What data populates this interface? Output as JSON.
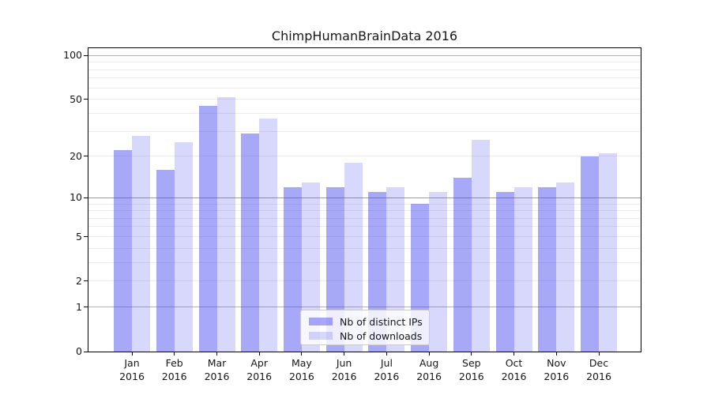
{
  "chart_data": {
    "type": "bar",
    "title": "ChimpHumanBrainData 2016",
    "xlabel": "",
    "ylabel": "",
    "scale": "log1p",
    "ylim": [
      0,
      112
    ],
    "grid": true,
    "yticks": [
      0,
      1,
      2,
      5,
      10,
      20,
      50,
      100
    ],
    "minor_gridlines": [
      2,
      3,
      4,
      5,
      6,
      7,
      8,
      9,
      20,
      30,
      40,
      50,
      60,
      70,
      80,
      90
    ],
    "major_gridlines": [
      1,
      10,
      100
    ],
    "categories": [
      {
        "label": "Jan",
        "sublabel": "2016"
      },
      {
        "label": "Feb",
        "sublabel": "2016"
      },
      {
        "label": "Mar",
        "sublabel": "2016"
      },
      {
        "label": "Apr",
        "sublabel": "2016"
      },
      {
        "label": "May",
        "sublabel": "2016"
      },
      {
        "label": "Jun",
        "sublabel": "2016"
      },
      {
        "label": "Jul",
        "sublabel": "2016"
      },
      {
        "label": "Aug",
        "sublabel": "2016"
      },
      {
        "label": "Sep",
        "sublabel": "2016"
      },
      {
        "label": "Oct",
        "sublabel": "2016"
      },
      {
        "label": "Nov",
        "sublabel": "2016"
      },
      {
        "label": "Dec",
        "sublabel": "2016"
      }
    ],
    "series": [
      {
        "name": "Nb of distinct IPs",
        "color": "rgba(70,70,240,0.47)",
        "values": [
          22,
          16,
          45,
          29,
          12,
          12,
          11,
          9,
          14,
          11,
          12,
          20
        ]
      },
      {
        "name": "Nb of downloads",
        "color": "rgba(70,70,240,0.21)",
        "values": [
          28,
          25,
          52,
          37,
          13,
          18,
          12,
          11,
          26,
          12,
          13,
          21
        ]
      }
    ],
    "legend": {
      "position": "lower center",
      "entries": [
        "Nb of distinct IPs",
        "Nb of downloads"
      ]
    }
  }
}
